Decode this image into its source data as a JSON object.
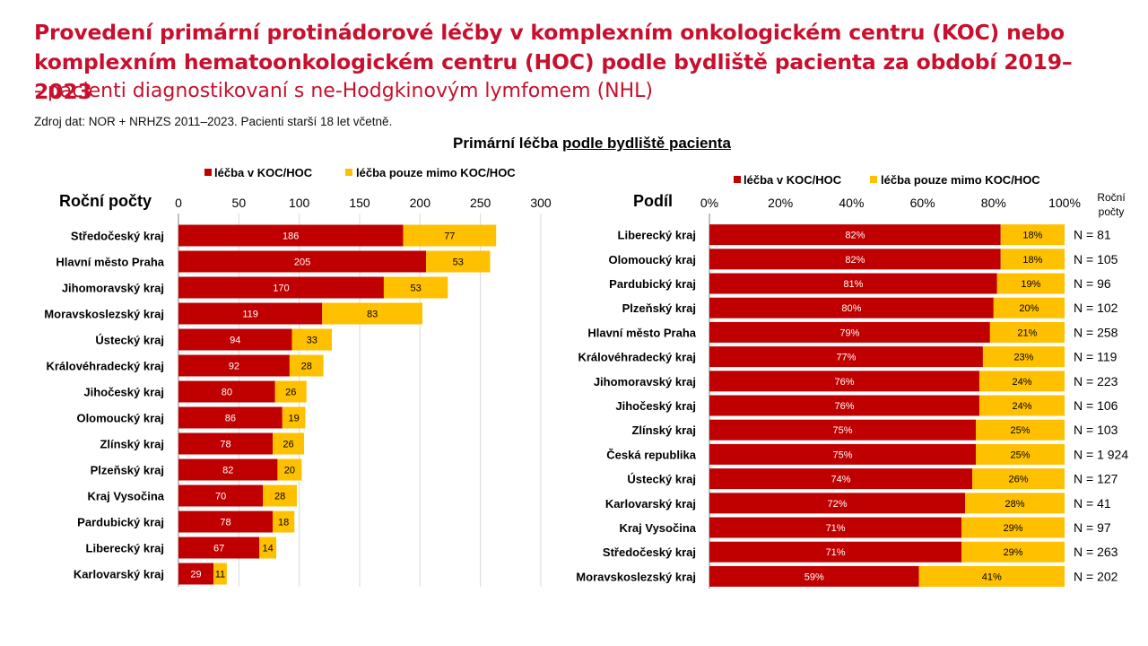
{
  "title": "Provedení primární protinádorové léčby v komplexním onkologickém centru (KOC) nebo komplexním hematoonkologickém centru (HOC) podle bydliště pacienta za období 2019–2023",
  "subtitle": "- pacienti diagnostikovaní s ne-Hodgkinovým lymfomem (NHL)",
  "source": "Zdroj dat: NOR + NRHZS 2011–2023. Pacienti starší 18 let včetně.",
  "section_title_a": "Primární léčba ",
  "section_title_b": "podle bydliště pacienta",
  "colors": {
    "koc": "#c00000",
    "mimo": "#ffc000",
    "title": "#c8102e"
  },
  "chart_data": [
    {
      "type": "bar",
      "orientation": "horizontal",
      "stacked": true,
      "title": "Roční počty",
      "legend": [
        "léčba v KOC/HOC",
        "léčba pouze mimo KOC/HOC"
      ],
      "legend_position": "top",
      "xlim": [
        0,
        300
      ],
      "xticks": [
        "0",
        "50",
        "100",
        "150",
        "200",
        "250",
        "300"
      ],
      "grid": true,
      "categories": [
        "Středočeský kraj",
        "Hlavní město Praha",
        "Jihomoravský kraj",
        "Moravskoslezský kraj",
        "Ústecký kraj",
        "Královéhradecký kraj",
        "Jihočeský kraj",
        "Olomoucký kraj",
        "Zlínský kraj",
        "Plzeňský kraj",
        "Kraj Vysočina",
        "Pardubický kraj",
        "Liberecký kraj",
        "Karlovarský kraj"
      ],
      "series": [
        {
          "name": "léčba v KOC/HOC",
          "values": [
            186,
            205,
            170,
            119,
            94,
            92,
            80,
            86,
            78,
            82,
            70,
            78,
            67,
            29
          ]
        },
        {
          "name": "léčba pouze mimo KOC/HOC",
          "values": [
            77,
            53,
            53,
            83,
            33,
            28,
            26,
            19,
            26,
            20,
            28,
            18,
            14,
            11
          ]
        }
      ]
    },
    {
      "type": "bar",
      "orientation": "horizontal",
      "stacked": true,
      "title": "Podíl",
      "legend": [
        "léčba v KOC/HOC",
        "léčba pouze mimo KOC/HOC"
      ],
      "legend_position": "top",
      "xlim": [
        0,
        100
      ],
      "xticks": [
        "0%",
        "20%",
        "40%",
        "60%",
        "80%",
        "100%"
      ],
      "n_header": [
        "Roční",
        "počty"
      ],
      "categories": [
        "Liberecký kraj",
        "Olomoucký kraj",
        "Pardubický kraj",
        "Plzeňský kraj",
        "Hlavní město Praha",
        "Královéhradecký kraj",
        "Jihomoravský kraj",
        "Jihočeský kraj",
        "Zlínský kraj",
        "Česká republika",
        "Ústecký kraj",
        "Karlovarský kraj",
        "Kraj Vysočina",
        "Středočeský kraj",
        "Moravskoslezský kraj"
      ],
      "series": [
        {
          "name": "léčba v KOC/HOC",
          "values": [
            82,
            82,
            81,
            80,
            79,
            77,
            76,
            76,
            75,
            75,
            74,
            72,
            71,
            71,
            59
          ]
        },
        {
          "name": "léčba pouze mimo KOC/HOC",
          "values": [
            18,
            18,
            19,
            20,
            21,
            23,
            24,
            24,
            25,
            25,
            26,
            28,
            29,
            29,
            41
          ]
        }
      ],
      "n_labels": [
        "N = 81",
        "N = 105",
        "N = 96",
        "N = 102",
        "N = 258",
        "N = 119",
        "N = 223",
        "N = 106",
        "N = 103",
        "N = 1 924",
        "N = 127",
        "N = 41",
        "N = 97",
        "N = 263",
        "N = 202"
      ]
    }
  ]
}
